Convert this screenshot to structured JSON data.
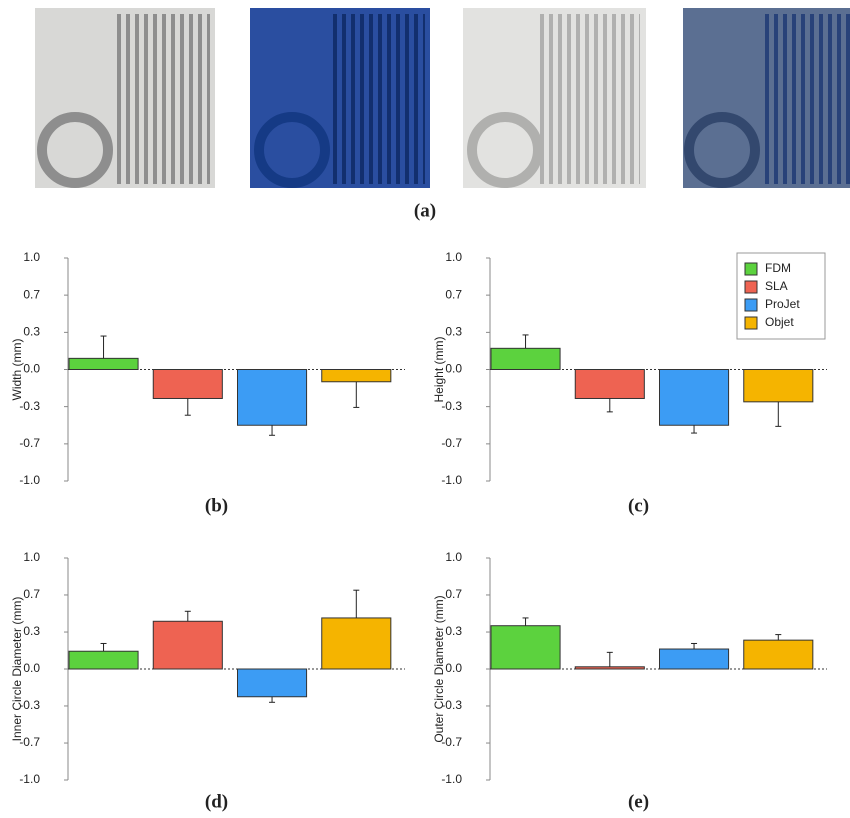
{
  "photos": {
    "caption": "(a)"
  },
  "chart_data": [
    {
      "type": "bar",
      "caption": "(b)",
      "ylabel": "Width (mm)",
      "ylim": [
        -1,
        1
      ],
      "yticks": [
        {
          "value": 1,
          "label": "1.0"
        },
        {
          "value": 0.667,
          "label": "0.7"
        },
        {
          "value": 0.333,
          "label": "0.3"
        },
        {
          "value": 0,
          "label": "0.0"
        },
        {
          "value": -0.333,
          "label": "-0.3"
        },
        {
          "value": -0.667,
          "label": "-0.7"
        },
        {
          "value": -1,
          "label": "-1.0"
        }
      ],
      "series": [
        {
          "color": "#5cd23e",
          "values": [
            0.1
          ],
          "errors": [
            0.2
          ]
        },
        {
          "color": "#ee6352",
          "values": [
            -0.26
          ],
          "errors": [
            0.15
          ]
        },
        {
          "color": "#3c9cf4",
          "values": [
            -0.5
          ],
          "errors": [
            0.09
          ]
        },
        {
          "color": "#f5b400",
          "values": [
            -0.11
          ],
          "errors": [
            0.23
          ]
        }
      ]
    },
    {
      "type": "bar",
      "caption": "(c)",
      "ylabel": "Height (mm)",
      "ylim": [
        -1,
        1
      ],
      "legend": "upper right",
      "yticks": [
        {
          "value": 1,
          "label": "1.0"
        },
        {
          "value": 0.667,
          "label": "0.7"
        },
        {
          "value": 0.333,
          "label": "0.3"
        },
        {
          "value": 0,
          "label": "0.0"
        },
        {
          "value": -0.333,
          "label": "-0.3"
        },
        {
          "value": -0.667,
          "label": "-0.7"
        },
        {
          "value": -1,
          "label": "-1.0"
        }
      ],
      "series": [
        {
          "name": "FDM",
          "color": "#5cd23e",
          "values": [
            0.19
          ],
          "errors": [
            0.12
          ]
        },
        {
          "name": "SLA",
          "color": "#ee6352",
          "values": [
            -0.26
          ],
          "errors": [
            0.12
          ]
        },
        {
          "name": "ProJet",
          "color": "#3c9cf4",
          "values": [
            -0.5
          ],
          "errors": [
            0.07
          ]
        },
        {
          "name": "Objet",
          "color": "#f5b400",
          "values": [
            -0.29
          ],
          "errors": [
            0.22
          ]
        }
      ]
    },
    {
      "type": "bar",
      "caption": "(d)",
      "ylabel": "Inner Circle Diameter (mm)",
      "ylim": [
        -1,
        1
      ],
      "yticks": [
        {
          "value": 1,
          "label": "1.0"
        },
        {
          "value": 0.667,
          "label": "0.7"
        },
        {
          "value": 0.333,
          "label": "0.3"
        },
        {
          "value": 0,
          "label": "0.0"
        },
        {
          "value": -0.333,
          "label": "-0.3"
        },
        {
          "value": -0.667,
          "label": "-0.7"
        },
        {
          "value": -1,
          "label": "-1.0"
        }
      ],
      "series": [
        {
          "color": "#5cd23e",
          "values": [
            0.16
          ],
          "errors": [
            0.07
          ]
        },
        {
          "color": "#ee6352",
          "values": [
            0.43
          ],
          "errors": [
            0.09
          ]
        },
        {
          "color": "#3c9cf4",
          "values": [
            -0.25
          ],
          "errors": [
            0.05
          ]
        },
        {
          "color": "#f5b400",
          "values": [
            0.46
          ],
          "errors": [
            0.25
          ]
        }
      ]
    },
    {
      "type": "bar",
      "caption": "(e)",
      "ylabel": "Outer Circle Diameter (mm)",
      "ylim": [
        -1,
        1
      ],
      "yticks": [
        {
          "value": 1,
          "label": "1.0"
        },
        {
          "value": 0.667,
          "label": "0.7"
        },
        {
          "value": 0.333,
          "label": "0.3"
        },
        {
          "value": 0,
          "label": "0.0"
        },
        {
          "value": -0.333,
          "label": "-0.3"
        },
        {
          "value": -0.667,
          "label": "-0.7"
        },
        {
          "value": -1,
          "label": "-1.0"
        }
      ],
      "series": [
        {
          "color": "#5cd23e",
          "values": [
            0.39
          ],
          "errors": [
            0.07
          ]
        },
        {
          "color": "#ee6352",
          "values": [
            0.02
          ],
          "errors": [
            0.13
          ]
        },
        {
          "color": "#3c9cf4",
          "values": [
            0.18
          ],
          "errors": [
            0.05
          ]
        },
        {
          "color": "#f5b400",
          "values": [
            0.26
          ],
          "errors": [
            0.05
          ]
        }
      ]
    }
  ]
}
